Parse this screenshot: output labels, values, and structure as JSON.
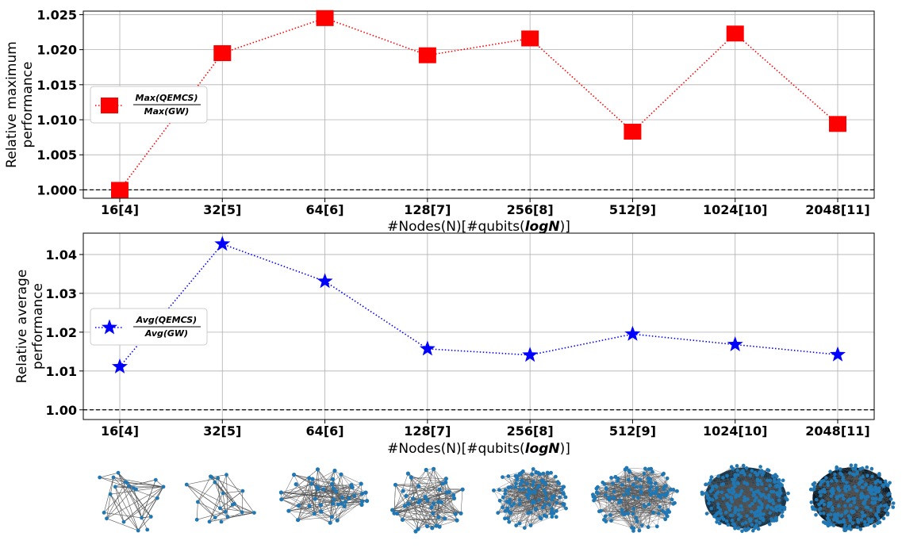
{
  "chart_data": [
    {
      "type": "line",
      "categories": [
        "16[4]",
        "32[5]",
        "64[6]",
        "128[7]",
        "256[8]",
        "512[9]",
        "1024[10]",
        "2048[11]"
      ],
      "series": [
        {
          "name": "Max(QEMCS) / Max(GW)",
          "name_numerator": "Max(QEMCS)",
          "name_denominator": "Max(GW)",
          "values": [
            1.0,
            1.0195,
            1.0245,
            1.0192,
            1.0216,
            1.0083,
            1.0223,
            1.0094
          ],
          "color": "#ff0000",
          "marker": "square",
          "linestyle": "dotted"
        }
      ],
      "xlabel_parts": [
        "#Nodes(N)[#qubits(",
        "logN",
        ")]"
      ],
      "ylabel_lines": [
        "Relative maximum",
        "performance"
      ],
      "ylim": [
        0.9988,
        1.0255
      ],
      "yticks": [
        "1.000",
        "1.005",
        "1.010",
        "1.015",
        "1.020",
        "1.025"
      ],
      "ytick_values": [
        1.0,
        1.005,
        1.01,
        1.015,
        1.02,
        1.025
      ],
      "reference_line": 1.0,
      "grid": true,
      "legend_position": "center-left"
    },
    {
      "type": "line",
      "categories": [
        "16[4]",
        "32[5]",
        "64[6]",
        "128[7]",
        "256[8]",
        "512[9]",
        "1024[10]",
        "2048[11]"
      ],
      "series": [
        {
          "name": "Avg(QEMCS) / Avg(GW)",
          "name_numerator": "Avg(QEMCS)",
          "name_denominator": "Avg(GW)",
          "values": [
            1.0111,
            1.0427,
            1.0331,
            1.0157,
            1.0141,
            1.0195,
            1.0168,
            1.0142
          ],
          "color": "#0000ff",
          "marker": "star",
          "linestyle": "dotted"
        }
      ],
      "xlabel_parts": [
        "#Nodes(N)[#qubits(",
        "logN",
        ")]"
      ],
      "ylabel_lines": [
        "Relative average",
        "performance"
      ],
      "ylim": [
        0.9975,
        1.0455
      ],
      "yticks": [
        "1.00",
        "1.01",
        "1.02",
        "1.03",
        "1.04"
      ],
      "ytick_values": [
        1.0,
        1.01,
        1.02,
        1.03,
        1.04
      ],
      "reference_line": 1.0,
      "grid": true,
      "legend_position": "center-left"
    }
  ],
  "graph_thumbnails": [
    {
      "nodes": 16,
      "style": "sparse"
    },
    {
      "nodes": 32,
      "style": "sparse"
    },
    {
      "nodes": 64,
      "style": "medium"
    },
    {
      "nodes": 128,
      "style": "medium"
    },
    {
      "nodes": 256,
      "style": "dense"
    },
    {
      "nodes": 512,
      "style": "dense"
    },
    {
      "nodes": 1024,
      "style": "very-dense"
    },
    {
      "nodes": 2048,
      "style": "very-dense"
    }
  ],
  "colors": {
    "node": "#1f77b4",
    "edge": "#555555",
    "grid": "#b0b0b0"
  }
}
